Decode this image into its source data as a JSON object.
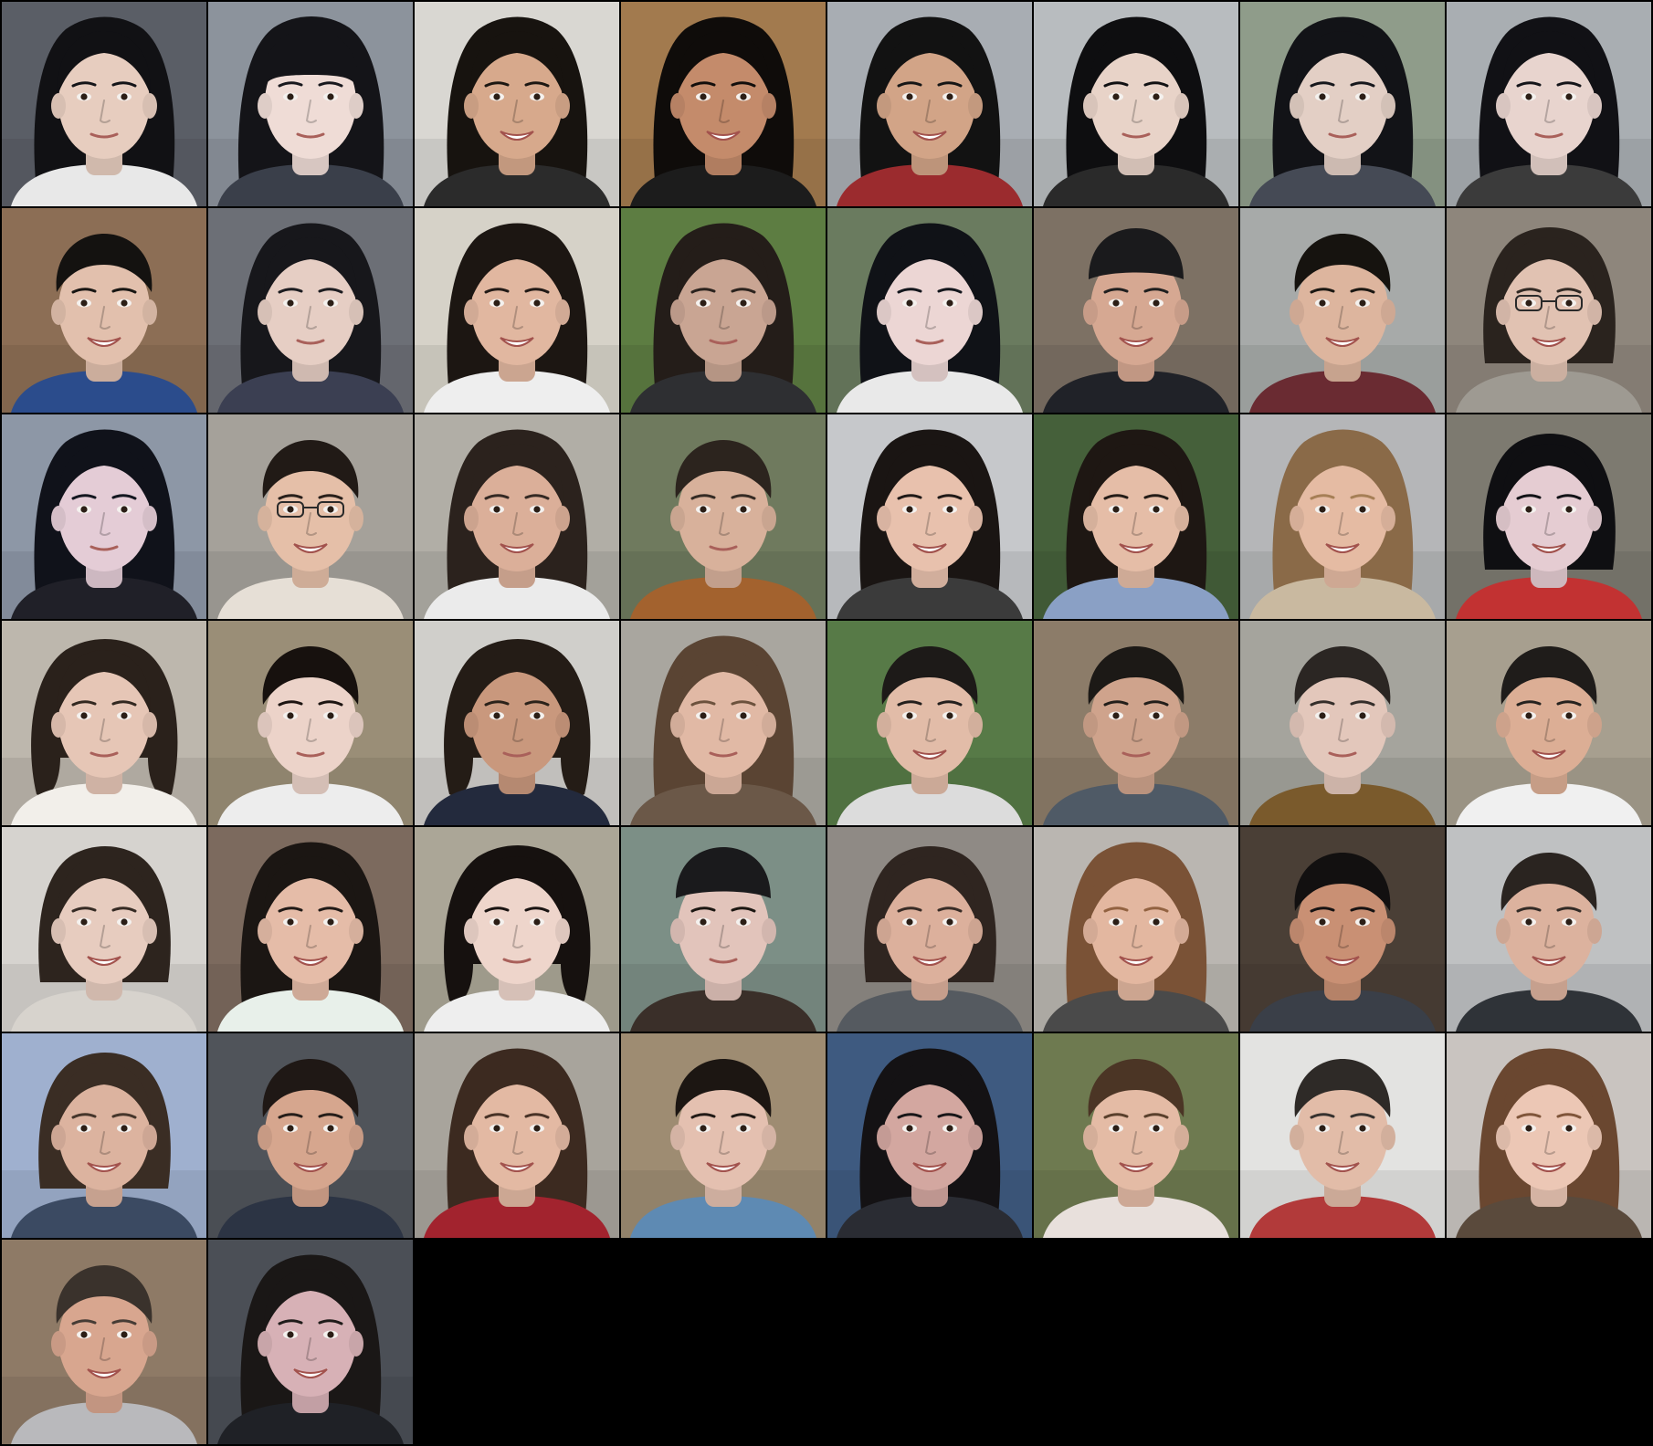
{
  "grid": {
    "background": "#000000",
    "columns": 8,
    "rows": 7,
    "tile_count": 50
  },
  "tiles": [
    {
      "bg": "#5a5e66",
      "hair": "#111114",
      "skin": "#e7cdbf",
      "shirt": "#e8e8e8",
      "hair_style": "long",
      "smile": false,
      "glasses": false,
      "hat": false
    },
    {
      "bg": "#8c939c",
      "hair": "#141418",
      "skin": "#efdcd6",
      "shirt": "#3a3f4a",
      "hair_style": "bangs",
      "smile": false,
      "glasses": false,
      "hat": false
    },
    {
      "bg": "#d9d7d2",
      "hair": "#17130f",
      "skin": "#d7a98c",
      "shirt": "#2b2b2b",
      "hair_style": "long",
      "smile": true,
      "glasses": false,
      "hat": false
    },
    {
      "bg": "#a27a4e",
      "hair": "#0f0c0a",
      "skin": "#c48b6b",
      "shirt": "#1c1c1c",
      "hair_style": "long",
      "smile": true,
      "glasses": false,
      "hat": false
    },
    {
      "bg": "#a8adb3",
      "hair": "#121212",
      "skin": "#d2a487",
      "shirt": "#9b2b2e",
      "hair_style": "long",
      "smile": true,
      "glasses": false,
      "hat": false
    },
    {
      "bg": "#b8bcbf",
      "hair": "#0e0e10",
      "skin": "#e8d3c8",
      "shirt": "#2a2a2a",
      "hair_style": "long",
      "smile": false,
      "glasses": false,
      "hat": false
    },
    {
      "bg": "#8f9c8a",
      "hair": "#121317",
      "skin": "#e3cfc5",
      "shirt": "#454a55",
      "hair_style": "long",
      "smile": false,
      "glasses": false,
      "hat": false
    },
    {
      "bg": "#a9aeb2",
      "hair": "#111115",
      "skin": "#e8d4ce",
      "shirt": "#3b3b3b",
      "hair_style": "long",
      "smile": false,
      "glasses": false,
      "hat": false
    },
    {
      "bg": "#8c6e55",
      "hair": "#141210",
      "skin": "#e2c0ad",
      "shirt": "#2b4c8c",
      "hair_style": "short",
      "smile": true,
      "glasses": false,
      "hat": false
    },
    {
      "bg": "#6c6f76",
      "hair": "#17171b",
      "skin": "#e6cec4",
      "shirt": "#3b3f52",
      "hair_style": "long",
      "smile": false,
      "glasses": false,
      "hat": false
    },
    {
      "bg": "#d6d2c8",
      "hair": "#1c1612",
      "skin": "#e1b7a0",
      "shirt": "#eeeeee",
      "hair_style": "long",
      "smile": true,
      "glasses": false,
      "hat": false
    },
    {
      "bg": "#5d7d42",
      "hair": "#241d19",
      "skin": "#c9a593",
      "shirt": "#2e2f32",
      "hair_style": "long",
      "smile": false,
      "glasses": false,
      "hat": false
    },
    {
      "bg": "#6a7b5f",
      "hair": "#101217",
      "skin": "#ecd6d4",
      "shirt": "#e9e9e9",
      "hair_style": "long",
      "smile": false,
      "glasses": false,
      "hat": false
    },
    {
      "bg": "#7d7164",
      "hair": "#1a1a1a",
      "skin": "#d6a892",
      "shirt": "#202228",
      "hair_style": "short",
      "smile": true,
      "glasses": false,
      "hat": true
    },
    {
      "bg": "#a7aaa9",
      "hair": "#16130f",
      "skin": "#ddb59e",
      "shirt": "#6a2b32",
      "hair_style": "short",
      "smile": true,
      "glasses": false,
      "hat": false
    },
    {
      "bg": "#8e867c",
      "hair": "#2a231e",
      "skin": "#e1c2b2",
      "shirt": "#9e9a92",
      "hair_style": "bob",
      "smile": true,
      "glasses": true,
      "hat": false
    },
    {
      "bg": "#8d97a6",
      "hair": "#10121a",
      "skin": "#e4ccd6",
      "shirt": "#202028",
      "hair_style": "long",
      "smile": false,
      "glasses": false,
      "hat": false
    },
    {
      "bg": "#a5a19a",
      "hair": "#211a16",
      "skin": "#e5bfa8",
      "shirt": "#e6dfd6",
      "hair_style": "short",
      "smile": true,
      "glasses": true,
      "hat": false
    },
    {
      "bg": "#b1aea6",
      "hair": "#2b221d",
      "skin": "#dbaf99",
      "shirt": "#ebebeb",
      "hair_style": "long",
      "smile": true,
      "glasses": false,
      "hat": false
    },
    {
      "bg": "#6f7a5e",
      "hair": "#2c241e",
      "skin": "#d8b19b",
      "shirt": "#a3622e",
      "hair_style": "short",
      "smile": false,
      "glasses": false,
      "hat": false
    },
    {
      "bg": "#c6c8cb",
      "hair": "#1a1513",
      "skin": "#e8c1ad",
      "shirt": "#3b3b3b",
      "hair_style": "long",
      "smile": true,
      "glasses": false,
      "hat": false
    },
    {
      "bg": "#45603a",
      "hair": "#1e1713",
      "skin": "#e5bda7",
      "shirt": "#8aa0c5",
      "hair_style": "long",
      "smile": true,
      "glasses": false,
      "hat": false
    },
    {
      "bg": "#b5b6b8",
      "hair": "#8a6a48",
      "skin": "#e5bba3",
      "shirt": "#c9b9a0",
      "hair_style": "long",
      "smile": true,
      "glasses": false,
      "hat": false
    },
    {
      "bg": "#7d7a70",
      "hair": "#0f0f12",
      "skin": "#e5ccd2",
      "shirt": "#c23232",
      "hair_style": "bob",
      "smile": true,
      "glasses": false,
      "hat": false
    },
    {
      "bg": "#bdb7ad",
      "hair": "#2a211b",
      "skin": "#e6c6b6",
      "shirt": "#f2efea",
      "hair_style": "curly",
      "smile": false,
      "glasses": false,
      "hat": false
    },
    {
      "bg": "#9a8e77",
      "hair": "#17110e",
      "skin": "#ecd3c9",
      "shirt": "#ededed",
      "hair_style": "short",
      "smile": false,
      "glasses": false,
      "hat": false
    },
    {
      "bg": "#d0cfcb",
      "hair": "#241c16",
      "skin": "#c9987d",
      "shirt": "#232a3d",
      "hair_style": "curly",
      "smile": false,
      "glasses": false,
      "hat": false
    },
    {
      "bg": "#a9a69f",
      "hair": "#5a4433",
      "skin": "#e1b9a5",
      "shirt": "#6b5848",
      "hair_style": "long",
      "smile": false,
      "glasses": false,
      "hat": false
    },
    {
      "bg": "#577a47",
      "hair": "#1d1a18",
      "skin": "#e2bca8",
      "shirt": "#dcdcdc",
      "hair_style": "short",
      "smile": true,
      "glasses": false,
      "hat": false
    },
    {
      "bg": "#8c7c69",
      "hair": "#1c1916",
      "skin": "#cfa38c",
      "shirt": "#4f5a66",
      "hair_style": "short",
      "smile": false,
      "glasses": false,
      "hat": false
    },
    {
      "bg": "#a5a49d",
      "hair": "#2b2623",
      "skin": "#e3c7bb",
      "shirt": "#7a5a2c",
      "hair_style": "short",
      "smile": false,
      "glasses": false,
      "hat": false
    },
    {
      "bg": "#a79f8f",
      "hair": "#1f1c1a",
      "skin": "#dcae95",
      "shirt": "#f0f0f0",
      "hair_style": "short",
      "smile": true,
      "glasses": false,
      "hat": false
    },
    {
      "bg": "#d6d3cf",
      "hair": "#2d241e",
      "skin": "#e7ccbf",
      "shirt": "#d7d3cd",
      "hair_style": "bob",
      "smile": true,
      "glasses": false,
      "hat": false
    },
    {
      "bg": "#7c6a5e",
      "hair": "#1b1613",
      "skin": "#e5bca8",
      "shirt": "#e8f0ea",
      "hair_style": "long",
      "smile": true,
      "glasses": false,
      "hat": false
    },
    {
      "bg": "#aba697",
      "hair": "#16110f",
      "skin": "#eed5cb",
      "shirt": "#eeeeee",
      "hair_style": "curly",
      "smile": false,
      "glasses": false,
      "hat": false
    },
    {
      "bg": "#7c8f86",
      "hair": "#17130f",
      "skin": "#e2c4bb",
      "shirt": "#3a2f29",
      "hair_style": "short",
      "smile": false,
      "glasses": false,
      "hat": true
    },
    {
      "bg": "#8f8a85",
      "hair": "#2f2520",
      "skin": "#dcb09c",
      "shirt": "#555a60",
      "hair_style": "bob",
      "smile": true,
      "glasses": false,
      "hat": false
    },
    {
      "bg": "#bab6b1",
      "hair": "#7a5236",
      "skin": "#e3b7a0",
      "shirt": "#4a4a4a",
      "hair_style": "long",
      "smile": true,
      "glasses": false,
      "hat": false
    },
    {
      "bg": "#4a3f36",
      "hair": "#121010",
      "skin": "#c99074",
      "shirt": "#3a3f48",
      "hair_style": "short",
      "smile": true,
      "glasses": false,
      "hat": false
    },
    {
      "bg": "#bfc1c2",
      "hair": "#2a2420",
      "skin": "#dcb29e",
      "shirt": "#2f3338",
      "hair_style": "short",
      "smile": true,
      "glasses": false,
      "hat": false
    },
    {
      "bg": "#9fb0cf",
      "hair": "#3a2d24",
      "skin": "#dcb39f",
      "shirt": "#3b4a62",
      "hair_style": "bob",
      "smile": true,
      "glasses": false,
      "hat": false
    },
    {
      "bg": "#50545a",
      "hair": "#1f1815",
      "skin": "#d6a68e",
      "shirt": "#2c3444",
      "hair_style": "short",
      "smile": true,
      "glasses": false,
      "hat": false
    },
    {
      "bg": "#a8a49c",
      "hair": "#3c2a20",
      "skin": "#e3b9a3",
      "shirt": "#a2232e",
      "hair_style": "long",
      "smile": true,
      "glasses": false,
      "hat": false
    },
    {
      "bg": "#9e8c72",
      "hair": "#1c1612",
      "skin": "#e4c0b0",
      "shirt": "#5e8ab3",
      "hair_style": "short",
      "smile": true,
      "glasses": false,
      "hat": false
    },
    {
      "bg": "#3e5a80",
      "hair": "#141214",
      "skin": "#d3a7a0",
      "shirt": "#2a2c33",
      "hair_style": "long",
      "smile": true,
      "glasses": false,
      "hat": false
    },
    {
      "bg": "#6e7a50",
      "hair": "#4b3525",
      "skin": "#e4bba5",
      "shirt": "#e8e0dc",
      "hair_style": "short",
      "smile": true,
      "glasses": false,
      "hat": false
    },
    {
      "bg": "#e3e3e1",
      "hair": "#2e2a27",
      "skin": "#e2bca8",
      "shirt": "#b23a3a",
      "hair_style": "short",
      "smile": true,
      "glasses": false,
      "hat": false
    },
    {
      "bg": "#c9c4c0",
      "hair": "#6a4730",
      "skin": "#ecc7b5",
      "shirt": "#5a4a3c",
      "hair_style": "long",
      "smile": true,
      "glasses": false,
      "hat": false
    },
    {
      "bg": "#8e7a66",
      "hair": "#3a322c",
      "skin": "#d8a68f",
      "shirt": "#b9b9bc",
      "hair_style": "short",
      "smile": true,
      "glasses": false,
      "hat": false
    },
    {
      "bg": "#4b4f56",
      "hair": "#1a1716",
      "skin": "#d7b1b6",
      "shirt": "#1f2126",
      "hair_style": "long",
      "smile": true,
      "glasses": false,
      "hat": false
    }
  ]
}
